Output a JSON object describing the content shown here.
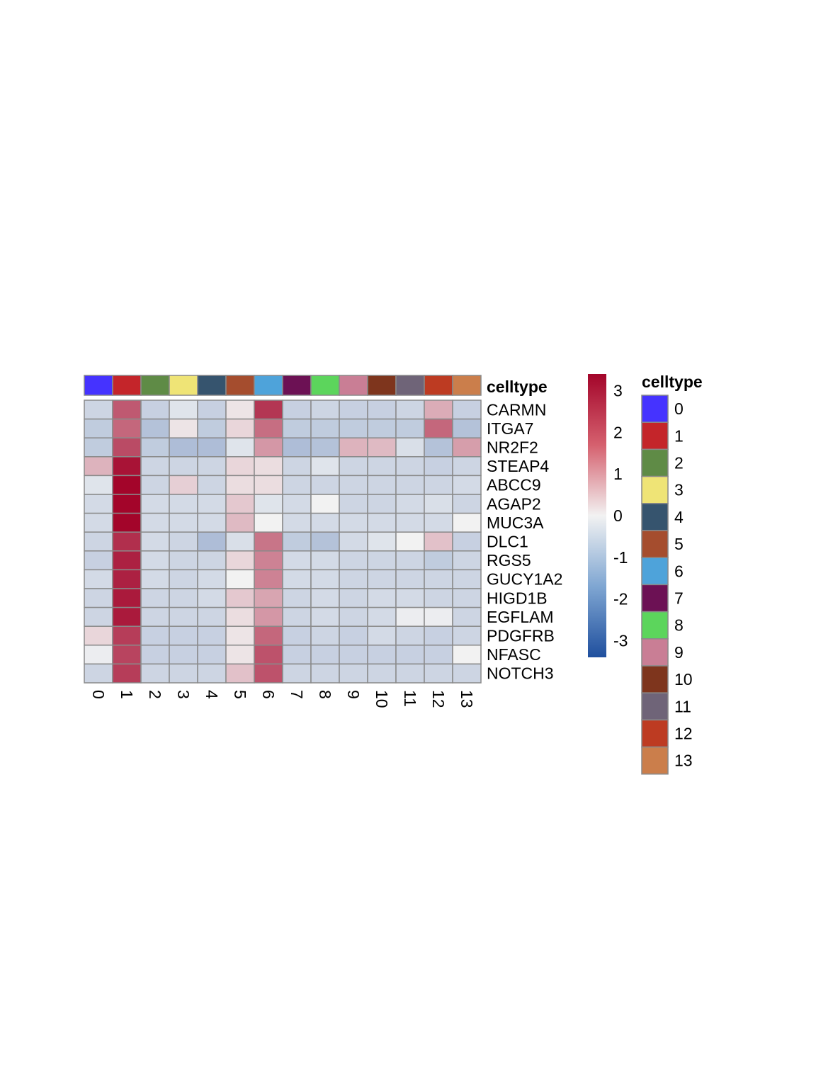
{
  "chart_data": {
    "type": "heatmap",
    "title": "",
    "xlabel": "",
    "ylabel": "",
    "columns": [
      "0",
      "1",
      "2",
      "3",
      "4",
      "5",
      "6",
      "7",
      "8",
      "9",
      "10",
      "11",
      "12",
      "13"
    ],
    "rows": [
      "CARMN",
      "ITGA7",
      "NR2F2",
      "STEAP4",
      "ABCC9",
      "AGAP2",
      "MUC3A",
      "DLC1",
      "RGS5",
      "GUCY1A2",
      "HIGD1B",
      "EGFLAM",
      "PDGFRB",
      "NFASC",
      "NOTCH3"
    ],
    "values": [
      [
        -0.6,
        2.2,
        -0.7,
        -0.3,
        -0.7,
        0.2,
        2.7,
        -0.7,
        -0.6,
        -0.7,
        -0.7,
        -0.6,
        1.0,
        -0.7
      ],
      [
        -0.8,
        2.0,
        -1.0,
        0.2,
        -0.8,
        0.4,
        1.9,
        -0.8,
        -0.8,
        -0.8,
        -0.8,
        -0.8,
        2.0,
        -1.0
      ],
      [
        -0.8,
        2.4,
        -0.8,
        -1.1,
        -1.1,
        -0.3,
        1.3,
        -1.1,
        -1.0,
        0.9,
        0.8,
        -0.4,
        -1.0,
        1.2
      ],
      [
        0.9,
        3.2,
        -0.6,
        -0.6,
        -0.6,
        0.4,
        0.3,
        -0.6,
        -0.3,
        -0.6,
        -0.6,
        -0.6,
        -0.7,
        -0.6
      ],
      [
        -0.3,
        3.4,
        -0.6,
        0.5,
        -0.6,
        0.3,
        0.3,
        -0.6,
        -0.6,
        -0.6,
        -0.6,
        -0.6,
        -0.6,
        -0.5
      ],
      [
        -0.5,
        3.4,
        -0.5,
        -0.5,
        -0.5,
        0.6,
        -0.3,
        -0.5,
        0.0,
        -0.6,
        -0.6,
        -0.5,
        -0.4,
        -0.6
      ],
      [
        -0.5,
        3.4,
        -0.5,
        -0.5,
        -0.5,
        0.8,
        0.0,
        -0.5,
        -0.5,
        -0.5,
        -0.5,
        -0.5,
        -0.5,
        0.0
      ],
      [
        -0.6,
        2.8,
        -0.5,
        -0.6,
        -1.1,
        -0.4,
        1.8,
        -0.8,
        -1.0,
        -0.5,
        -0.3,
        0.0,
        0.7,
        -0.7
      ],
      [
        -0.7,
        3.0,
        -0.5,
        -0.6,
        -0.6,
        0.4,
        1.6,
        -0.5,
        -0.5,
        -0.6,
        -0.6,
        -0.6,
        -0.8,
        -0.6
      ],
      [
        -0.5,
        3.0,
        -0.5,
        -0.6,
        -0.5,
        0.0,
        1.6,
        -0.5,
        -0.5,
        -0.6,
        -0.6,
        -0.6,
        -0.6,
        -0.6
      ],
      [
        -0.6,
        3.1,
        -0.6,
        -0.6,
        -0.5,
        0.6,
        1.1,
        -0.6,
        -0.5,
        -0.6,
        -0.5,
        -0.5,
        -0.6,
        -0.6
      ],
      [
        -0.6,
        3.1,
        -0.6,
        -0.6,
        -0.6,
        0.3,
        1.3,
        -0.6,
        -0.5,
        -0.6,
        -0.5,
        -0.1,
        -0.1,
        -0.6
      ],
      [
        0.4,
        2.6,
        -0.7,
        -0.7,
        -0.7,
        0.2,
        2.0,
        -0.7,
        -0.6,
        -0.7,
        -0.5,
        -0.6,
        -0.7,
        -0.6
      ],
      [
        -0.1,
        2.5,
        -0.7,
        -0.7,
        -0.7,
        0.2,
        2.3,
        -0.7,
        -0.7,
        -0.7,
        -0.7,
        -0.7,
        -0.7,
        0.0
      ],
      [
        -0.6,
        2.6,
        -0.6,
        -0.6,
        -0.6,
        0.7,
        2.3,
        -0.6,
        -0.6,
        -0.6,
        -0.6,
        -0.6,
        -0.6,
        -0.6
      ]
    ],
    "annotation": {
      "title": "celltype",
      "labels": [
        "0",
        "1",
        "2",
        "3",
        "4",
        "5",
        "6",
        "7",
        "8",
        "9",
        "10",
        "11",
        "12",
        "13"
      ],
      "colors": [
        "#4533FF",
        "#C4252A",
        "#5F8B46",
        "#EFE476",
        "#36546E",
        "#A54D2E",
        "#4EA3DA",
        "#6C1154",
        "#5CD55C",
        "#C97E95",
        "#7E351D",
        "#6F6478",
        "#BD3B22",
        "#CB7E4B"
      ]
    },
    "colorbar": {
      "ticks": [
        "3",
        "2",
        "1",
        "0",
        "-1",
        "-2",
        "-3"
      ],
      "range": [
        -3.4,
        3.4
      ],
      "low_color": "#1F4F9E",
      "mid_color": "#F2F2F2",
      "high_color": "#A3052A"
    },
    "grid": true,
    "legend": "right"
  }
}
